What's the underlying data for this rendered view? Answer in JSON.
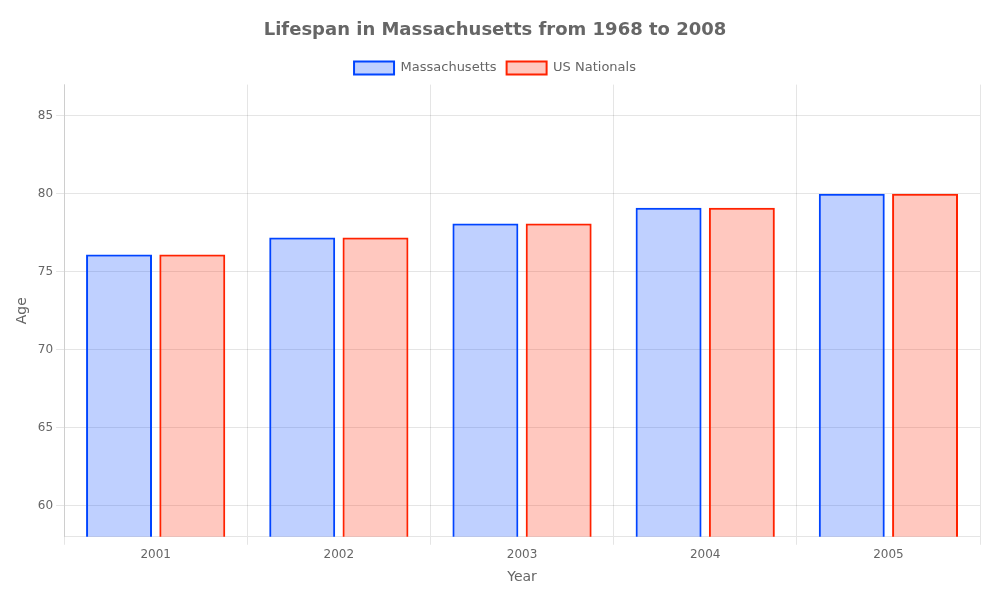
{
  "chart_data": {
    "type": "bar",
    "title": "Lifespan in Massachusetts from 1968 to 2008",
    "xlabel": "Year",
    "ylabel": "Age",
    "categories": [
      "2001",
      "2002",
      "2003",
      "2004",
      "2005"
    ],
    "series": [
      {
        "name": "Massachusetts",
        "color": "#0044ff",
        "values": [
          76.1,
          77.2,
          78.1,
          79.1,
          80.0
        ]
      },
      {
        "name": "US Nationals",
        "color": "#ff2200",
        "values": [
          76.1,
          77.2,
          78.1,
          79.1,
          80.0
        ]
      }
    ],
    "ylim": [
      58,
      87
    ],
    "yticks": [
      60,
      65,
      70,
      75,
      80,
      85
    ],
    "grid": true,
    "legend": "top"
  }
}
